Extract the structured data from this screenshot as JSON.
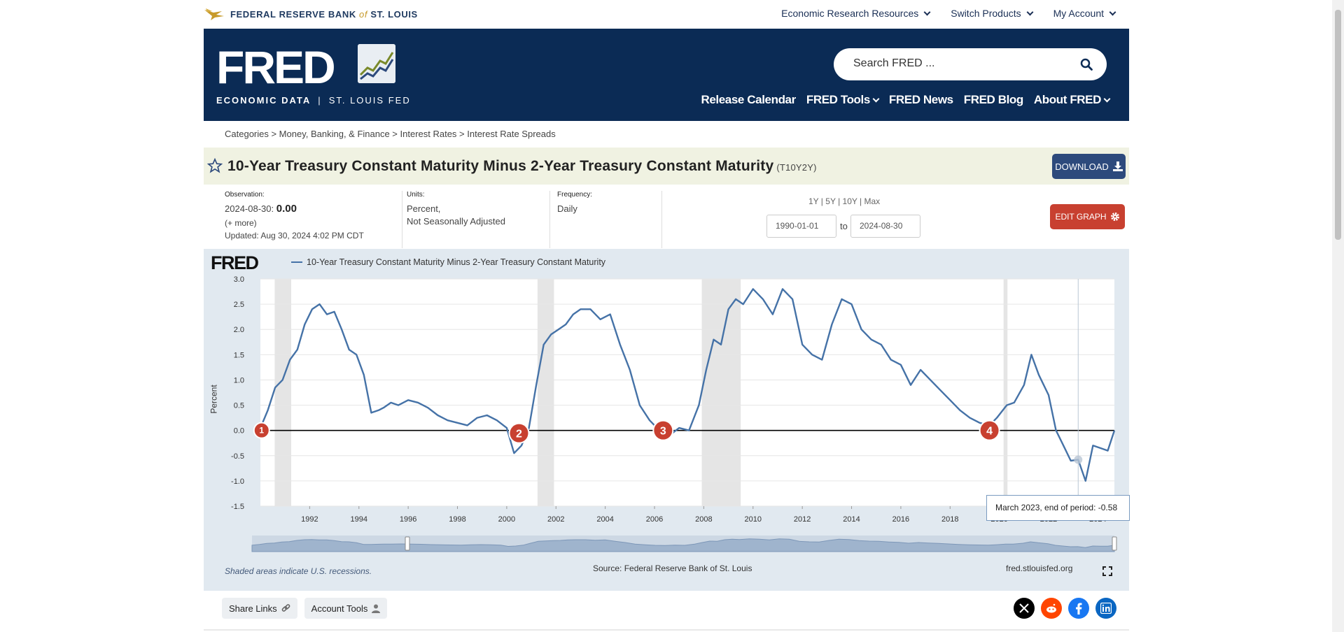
{
  "topbar": {
    "org_name_1": "FEDERAL RESERVE BANK",
    "org_of": "of",
    "org_name_2": "ST. LOUIS",
    "links": [
      "Economic Research Resources",
      "Switch Products",
      "My Account"
    ]
  },
  "header": {
    "logo_word": "FRED",
    "tagline_1": "ECONOMIC DATA",
    "tagline_sep": "|",
    "tagline_2": "ST. LOUIS FED",
    "search_placeholder": "Search FRED ...",
    "nav": [
      "Release Calendar",
      "FRED Tools",
      "FRED News",
      "FRED Blog",
      "About FRED"
    ]
  },
  "breadcrumb": "Categories > Money, Banking, & Finance > Interest Rates > Interest Rate Spreads",
  "series": {
    "title": "10-Year Treasury Constant Maturity Minus 2-Year Treasury Constant Maturity",
    "id": "(T10Y2Y)",
    "download_label": "DOWNLOAD",
    "edit_label": "EDIT GRAPH"
  },
  "meta": {
    "observation_label": "Observation:",
    "observation_date": "2024-08-30:",
    "observation_value": "0.00",
    "more": "(+ more)",
    "updated_label": "Updated:",
    "updated_value": "Aug 30, 2024 4:02 PM CDT",
    "units_label": "Units:",
    "units_1": "Percent,",
    "units_2": "Not Seasonally Adjusted",
    "frequency_label": "Frequency:",
    "frequency": "Daily",
    "ranges": [
      "1Y",
      "5Y",
      "10Y",
      "Max"
    ],
    "date_from": "1990-01-01",
    "date_to_word": "to",
    "date_to": "2024-08-30"
  },
  "graph": {
    "logo": "FRED",
    "legend": "10-Year Treasury Constant Maturity Minus 2-Year Treasury Constant Maturity",
    "ylabel": "Percent",
    "tooltip": "March 2023, end of period: -0.58",
    "footer_left": "Shaded areas indicate U.S. recessions.",
    "footer_mid": "Source: Federal Reserve Bank of St. Louis",
    "footer_right": "fred.stlouisfed.org",
    "markers": [
      "1",
      "2",
      "3",
      "4"
    ],
    "colors": {
      "line": "#4572a7",
      "recession": "#e5e5e5",
      "marker": "#c84030"
    }
  },
  "chart_data": {
    "type": "line",
    "ylabel": "Percent",
    "ylim": [
      -1.5,
      3.0
    ],
    "yticks": [
      3.0,
      2.5,
      2.0,
      1.5,
      1.0,
      0.5,
      0.0,
      -0.5,
      -1.0,
      -1.5
    ],
    "xticks": [
      "1992",
      "1994",
      "1996",
      "1998",
      "2000",
      "2002",
      "2004",
      "2006",
      "2008",
      "2010",
      "2012",
      "2014",
      "2016",
      "2018",
      "2020",
      "2022",
      "2024"
    ],
    "xlim": [
      1990.0,
      2024.67
    ],
    "recessions": [
      [
        1990.58,
        1991.25
      ],
      [
        2001.25,
        2001.92
      ],
      [
        2007.92,
        2009.5
      ],
      [
        2020.17,
        2020.33
      ]
    ],
    "series": [
      {
        "name": "10-Year Treasury Constant Maturity Minus 2-Year Treasury Constant Maturity",
        "x": [
          1990.0,
          1990.3,
          1990.6,
          1990.9,
          1991.2,
          1991.5,
          1991.8,
          1992.1,
          1992.4,
          1992.7,
          1993.0,
          1993.3,
          1993.6,
          1993.9,
          1994.2,
          1994.5,
          1994.8,
          1995.0,
          1995.3,
          1995.6,
          1996.0,
          1996.4,
          1996.8,
          1997.2,
          1997.6,
          1998.0,
          1998.4,
          1998.8,
          1999.2,
          1999.6,
          2000.0,
          2000.3,
          2000.6,
          2000.9,
          2001.2,
          2001.5,
          2001.8,
          2002.1,
          2002.4,
          2002.7,
          2003.0,
          2003.4,
          2003.8,
          2004.2,
          2004.6,
          2005.0,
          2005.4,
          2005.8,
          2006.2,
          2006.6,
          2007.0,
          2007.4,
          2007.8,
          2008.1,
          2008.4,
          2008.7,
          2009.0,
          2009.3,
          2009.6,
          2010.0,
          2010.4,
          2010.8,
          2011.2,
          2011.6,
          2012.0,
          2012.4,
          2012.8,
          2013.2,
          2013.6,
          2014.0,
          2014.4,
          2014.8,
          2015.2,
          2015.6,
          2016.0,
          2016.4,
          2016.8,
          2017.2,
          2017.6,
          2018.0,
          2018.4,
          2018.8,
          2019.2,
          2019.6,
          2019.9,
          2020.3,
          2020.6,
          2021.0,
          2021.3,
          2021.6,
          2022.0,
          2022.3,
          2022.6,
          2022.9,
          2023.2,
          2023.5,
          2023.8,
          2024.1,
          2024.4,
          2024.67
        ],
        "y": [
          0.05,
          0.4,
          0.85,
          1.0,
          1.4,
          1.6,
          2.1,
          2.4,
          2.5,
          2.3,
          2.35,
          2.0,
          1.6,
          1.5,
          1.1,
          0.35,
          0.4,
          0.45,
          0.55,
          0.5,
          0.6,
          0.55,
          0.45,
          0.3,
          0.2,
          0.15,
          0.1,
          0.25,
          0.3,
          0.2,
          0.05,
          -0.45,
          -0.3,
          0.05,
          0.9,
          1.7,
          1.9,
          2.0,
          2.1,
          2.3,
          2.4,
          2.4,
          2.2,
          2.3,
          1.7,
          1.2,
          0.5,
          0.2,
          0.0,
          -0.1,
          0.05,
          0.0,
          0.5,
          1.2,
          1.8,
          1.7,
          2.4,
          2.6,
          2.5,
          2.8,
          2.6,
          2.3,
          2.8,
          2.6,
          1.7,
          1.5,
          1.4,
          2.1,
          2.6,
          2.5,
          2.0,
          1.8,
          1.7,
          1.4,
          1.3,
          0.9,
          1.2,
          1.0,
          0.8,
          0.6,
          0.4,
          0.25,
          0.15,
          0.1,
          0.25,
          0.5,
          0.55,
          0.9,
          1.5,
          1.1,
          0.7,
          0.0,
          -0.3,
          -0.6,
          -0.58,
          -1.0,
          -0.3,
          -0.35,
          -0.4,
          0.0
        ]
      }
    ]
  }
}
